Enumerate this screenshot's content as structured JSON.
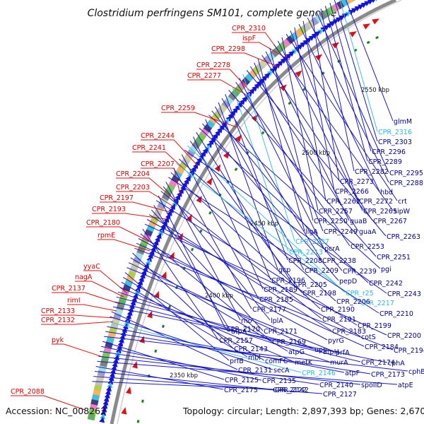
{
  "header": {
    "title": "Clostridium perfringens SM101, complete genome"
  },
  "footer": {
    "accession": "Accession: NC_008262",
    "summary": "Topology: circular; Length: 2,897,393 bp; Genes: 2,670"
  },
  "ticks": [
    "2550 kbp",
    "2500 kbp",
    "2450 kbp",
    "2400 kbp",
    "2350 kbp"
  ],
  "red_labels": [
    "CPR_2310",
    "ispF",
    "CPR_2298",
    "CPR_2278",
    "CPR_2277",
    "CPR_2259",
    "CPR_2244",
    "CPR_2241",
    "CPR_2207",
    "CPR_2204",
    "CPR_2203",
    "CPR_2197",
    "CPR_2193",
    "CPR_2180",
    "rpmE",
    "yyaC",
    "nagA",
    "CPR_2137",
    "rimI",
    "CPR_2133",
    "CPR_2132",
    "pyk",
    "CPR_2088"
  ],
  "blue_labels": [
    {
      "t": "glmM",
      "c": "b"
    },
    {
      "t": "CPR_2316",
      "c": "c"
    },
    {
      "t": "CPR_2303",
      "c": "b"
    },
    {
      "t": "CPR_2296",
      "c": "b"
    },
    {
      "t": "CPR_2289",
      "c": "b"
    },
    {
      "t": "CPR_2282",
      "c": "b"
    },
    {
      "t": "CPR_2295",
      "c": "b"
    },
    {
      "t": "CPR_2273",
      "c": "b"
    },
    {
      "t": "CPR_2288",
      "c": "b"
    },
    {
      "t": "CPR_2266",
      "c": "b"
    },
    {
      "t": "hbd",
      "c": "b"
    },
    {
      "t": "CPR_2262",
      "c": "b"
    },
    {
      "t": "CPR_2272",
      "c": "b"
    },
    {
      "t": "crt",
      "c": "b"
    },
    {
      "t": "CPR_2257",
      "c": "b"
    },
    {
      "t": "CPR_2265",
      "c": "b"
    },
    {
      "t": "sipW",
      "c": "b"
    },
    {
      "t": "CPR_2250",
      "c": "b"
    },
    {
      "t": "guaB",
      "c": "b"
    },
    {
      "t": "CPR_2267",
      "c": "b"
    },
    {
      "t": "ligA",
      "c": "b"
    },
    {
      "t": "CPR_2249",
      "c": "b"
    },
    {
      "t": "guaA",
      "c": "b"
    },
    {
      "t": "CPR_2263",
      "c": "b"
    },
    {
      "t": "CPR_2237",
      "c": "c"
    },
    {
      "t": "pcrA",
      "c": "b"
    },
    {
      "t": "CPR_2253",
      "c": "b"
    },
    {
      "t": "CPR_2213",
      "c": "c"
    },
    {
      "t": "CPR_2251",
      "c": "b"
    },
    {
      "t": "CPR_2208",
      "c": "b"
    },
    {
      "t": "CPR_2238",
      "c": "b"
    },
    {
      "t": "gcp",
      "c": "b"
    },
    {
      "t": "CPR_2209",
      "c": "b"
    },
    {
      "t": "CPR_2239",
      "c": "b"
    },
    {
      "t": "pgi",
      "c": "b"
    },
    {
      "t": "CPR_2196",
      "c": "b"
    },
    {
      "t": "pepD",
      "c": "b"
    },
    {
      "t": "CPR_2242",
      "c": "b"
    },
    {
      "t": "CPR_2205",
      "c": "b"
    },
    {
      "t": "CPR_2189",
      "c": "b"
    },
    {
      "t": "CPR_2198",
      "c": "b"
    },
    {
      "t": "CPR_r25",
      "c": "c"
    },
    {
      "t": "CPR_2243",
      "c": "b"
    },
    {
      "t": "CPR_2185",
      "c": "b"
    },
    {
      "t": "CPR_2206",
      "c": "b"
    },
    {
      "t": "CPR_2217",
      "c": "c"
    },
    {
      "t": "CPR_2177",
      "c": "b"
    },
    {
      "t": "CPR_2190",
      "c": "b"
    },
    {
      "t": "CPR_2210",
      "c": "b"
    },
    {
      "t": "rho",
      "c": "b"
    },
    {
      "t": "lplA",
      "c": "b"
    },
    {
      "t": "CPR_2191",
      "c": "b"
    },
    {
      "t": "CPR_2170",
      "c": "b"
    },
    {
      "t": "CPR_2199",
      "c": "b"
    },
    {
      "t": "atpA",
      "c": "b"
    },
    {
      "t": "CPR_2171",
      "c": "b"
    },
    {
      "t": "CPR_2183",
      "c": "b"
    },
    {
      "t": "cotS",
      "c": "b"
    },
    {
      "t": "CPR_2200",
      "c": "b"
    },
    {
      "t": "CPR_2157",
      "c": "b"
    },
    {
      "t": "CPR_2169",
      "c": "b"
    },
    {
      "t": "pyrG",
      "c": "b"
    },
    {
      "t": "CPR_2184",
      "c": "b"
    },
    {
      "t": "CPR_2194",
      "c": "b"
    },
    {
      "t": "CPR_2143",
      "c": "b"
    },
    {
      "t": "atpG",
      "c": "b"
    },
    {
      "t": "upp",
      "c": "b"
    },
    {
      "t": "prfA",
      "c": "b"
    },
    {
      "t": "prfB",
      "c": "b"
    },
    {
      "t": "comFC",
      "c": "b"
    },
    {
      "t": "mbl",
      "c": "b"
    },
    {
      "t": "metK",
      "c": "b"
    },
    {
      "t": "murA",
      "c": "b"
    },
    {
      "t": "atpH",
      "c": "b"
    },
    {
      "t": "CPR_2174",
      "c": "b"
    },
    {
      "t": "cphA",
      "c": "b"
    },
    {
      "t": "CPR_2131",
      "c": "b"
    },
    {
      "t": "secA",
      "c": "b"
    },
    {
      "t": "CPR_2146",
      "c": "c"
    },
    {
      "t": "atpF",
      "c": "b"
    },
    {
      "t": "CPR_2173",
      "c": "b"
    },
    {
      "t": "cphB",
      "c": "b"
    },
    {
      "t": "CPR_2125",
      "c": "b"
    },
    {
      "t": "CPR_2135",
      "c": "b"
    },
    {
      "t": "CPR_2140",
      "c": "b"
    },
    {
      "t": "spoIID",
      "c": "b"
    },
    {
      "t": "atpE",
      "c": "b"
    },
    {
      "t": "CPR_2175",
      "c": "b"
    },
    {
      "t": "CPR_2122",
      "c": "b"
    },
    {
      "t": "CPR_2127",
      "c": "b"
    },
    {
      "t": "CPR_2142",
      "c": "b"
    }
  ],
  "colors": {
    "forward_red": "#e01010",
    "reverse_blue": "#1414d8",
    "cyan": "#40c0e0",
    "backbone": "#808080"
  }
}
